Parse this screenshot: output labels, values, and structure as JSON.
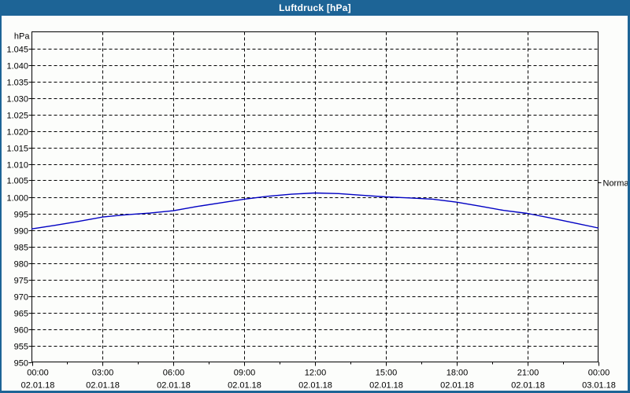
{
  "window": {
    "title": "Luftdruck [hPa]"
  },
  "colors": {
    "titlebar_bg": "#1d6496",
    "titlebar_text": "#ffffff",
    "window_border": "#1d6496",
    "plot_bg": "#fcfdfb",
    "grid": "#000000",
    "axis": "#000000",
    "label_text": "#000000",
    "curve": "#0000c3"
  },
  "chart_data": {
    "type": "line",
    "title": "Luftdruck [hPa]",
    "grid": "dashed",
    "y_axis": {
      "unit_label": "hPa",
      "min": 950,
      "max": 1050,
      "tick_step": 5,
      "tick_values": [
        1045,
        1040,
        1035,
        1030,
        1025,
        1020,
        1015,
        1010,
        1005,
        1000,
        995,
        990,
        985,
        980,
        975,
        970,
        965,
        960,
        955,
        950
      ],
      "tick_labels": [
        "1.045",
        "1.040",
        "1.035",
        "1.030",
        "1.025",
        "1.020",
        "1.015",
        "1.010",
        "1.005",
        "1.000",
        "995",
        "990",
        "985",
        "980",
        "975",
        "970",
        "965",
        "960",
        "955",
        "950"
      ]
    },
    "x_axis": {
      "range_hours": [
        0,
        24
      ],
      "major_tick_hours": [
        0,
        3,
        6,
        9,
        12,
        15,
        18,
        21,
        24
      ],
      "minor_tick_interval_hours": 1.5,
      "tick_time_labels": [
        "00:00",
        "03:00",
        "06:00",
        "09:00",
        "12:00",
        "15:00",
        "18:00",
        "21:00",
        "00:00"
      ],
      "tick_date_labels": [
        "02.01.18",
        "02.01.18",
        "02.01.18",
        "02.01.18",
        "02.01.18",
        "02.01.18",
        "02.01.18",
        "02.01.18",
        "03.01.18"
      ]
    },
    "series": [
      {
        "name": "Luftdruck",
        "x_hours": [
          0,
          1,
          2,
          3,
          4,
          5,
          6,
          7,
          8,
          9,
          10,
          11,
          12,
          13,
          14,
          15,
          16,
          17,
          18,
          19,
          20,
          21,
          22,
          23,
          24
        ],
        "values_hpa": [
          990.3,
          991.4,
          992.6,
          993.9,
          994.6,
          995.1,
          995.8,
          997.1,
          998.2,
          999.3,
          1000.2,
          1000.8,
          1001.2,
          1001.0,
          1000.5,
          1000.0,
          999.7,
          999.3,
          998.4,
          997.2,
          995.9,
          995.0,
          993.6,
          992.1,
          990.6
        ]
      }
    ],
    "annotations": [
      {
        "label": "Normal",
        "value_hpa": 1004.5,
        "side": "right"
      }
    ]
  }
}
